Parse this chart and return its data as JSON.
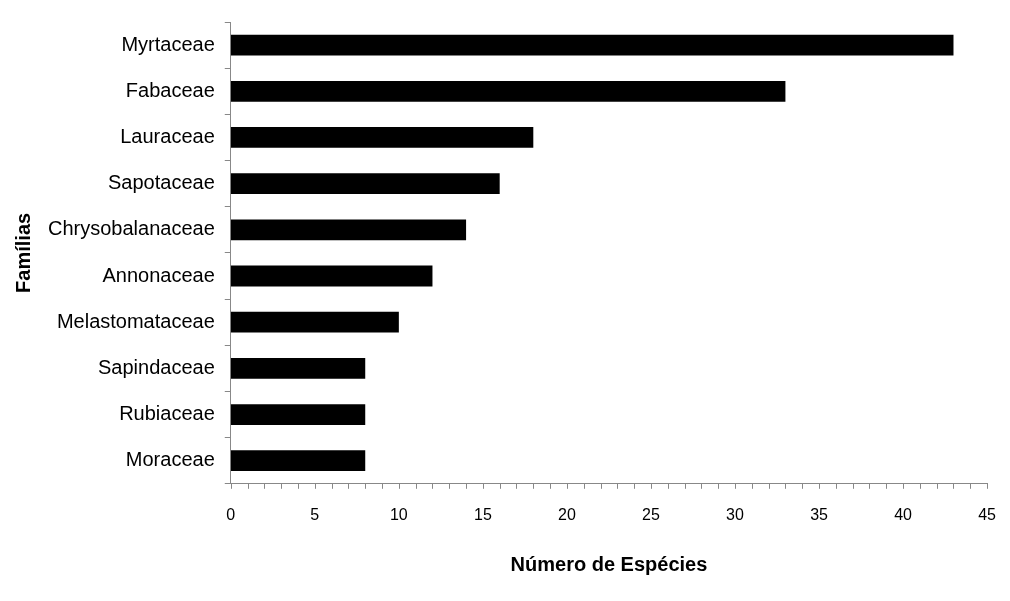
{
  "chart_data": {
    "type": "bar",
    "orientation": "horizontal",
    "xlabel": "Número de Espécies",
    "ylabel": "Famílias",
    "categories": [
      "Myrtaceae",
      "Fabaceae",
      "Lauraceae",
      "Sapotaceae",
      "Chrysobalanaceae",
      "Annonaceae",
      "Melastomataceae",
      "Sapindaceae",
      "Rubiaceae",
      "Moraceae"
    ],
    "values": [
      43,
      33,
      18,
      16,
      14,
      12,
      10,
      8,
      8,
      8
    ],
    "color": "#000000",
    "xlim": [
      0,
      45
    ],
    "xticks": [
      0,
      5,
      10,
      15,
      20,
      25,
      30,
      35,
      40,
      45
    ],
    "grid": false,
    "legend": false
  }
}
